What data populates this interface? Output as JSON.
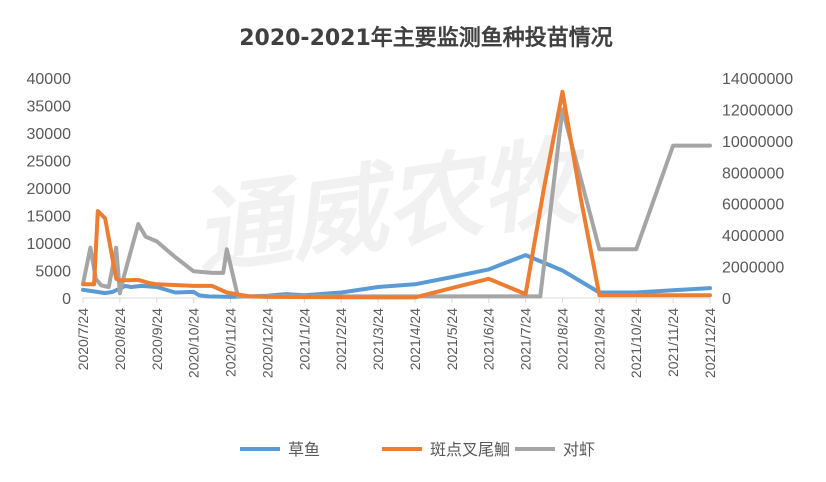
{
  "chart_data": {
    "type": "line",
    "title": "2020-2021年主要监测鱼种投苗情况",
    "watermark": "通威农牧",
    "x_tick_labels": [
      "2020/7/24",
      "2020/8/24",
      "2020/9/24",
      "2020/10/24",
      "2020/11/24",
      "2020/12/24",
      "2021/1/24",
      "2021/2/24",
      "2021/3/24",
      "2021/4/24",
      "2021/5/24",
      "2021/6/24",
      "2021/7/24",
      "2021/8/24",
      "2021/9/24",
      "2021/10/24",
      "2021/11/24",
      "2021/12/24"
    ],
    "y_left": {
      "lim": [
        0,
        40000
      ],
      "ticks": [
        0,
        5000,
        10000,
        15000,
        20000,
        25000,
        30000,
        35000,
        40000
      ]
    },
    "y_right": {
      "lim": [
        0,
        14000000
      ],
      "ticks": [
        0,
        2000000,
        4000000,
        6000000,
        8000000,
        10000000,
        12000000,
        14000000
      ]
    },
    "series": [
      {
        "name": "草鱼",
        "axis": "left",
        "color": "#5b9bd5",
        "x": [
          0,
          0.2,
          0.6,
          0.8,
          1.15,
          1.3,
          1.6,
          2.0,
          2.5,
          3.0,
          3.15,
          3.4,
          4.0,
          4.5,
          5.0,
          5.5,
          6.0,
          7.0,
          8.0,
          9.0,
          10.0,
          11.0,
          11.5,
          12.0,
          13.0,
          14.0,
          15.0,
          16.0,
          17.0
        ],
        "y": [
          1500,
          1300,
          900,
          1100,
          2200,
          2000,
          2200,
          2000,
          1000,
          1100,
          500,
          300,
          200,
          300,
          400,
          700,
          500,
          1000,
          2000,
          2500,
          3800,
          5200,
          6500,
          7800,
          5000,
          1000,
          1000,
          1400,
          1800
        ]
      },
      {
        "name": "斑点叉尾鮰",
        "axis": "left",
        "color": "#ed7d31",
        "x": [
          0,
          0.3,
          0.4,
          0.6,
          0.9,
          1.0,
          1.5,
          1.8,
          2.0,
          3.0,
          3.2,
          3.5,
          3.9,
          4.5,
          5.0,
          8.0,
          9.0,
          10.0,
          11.0,
          12.0,
          12.5,
          13.0,
          13.5,
          14.0,
          15.0,
          17.0
        ],
        "y": [
          2500,
          2500,
          15800,
          14500,
          3500,
          3200,
          3300,
          2700,
          2500,
          2200,
          2200,
          2200,
          1000,
          300,
          200,
          100,
          100,
          1800,
          3500,
          700,
          20000,
          37500,
          18000,
          500,
          500,
          500
        ]
      },
      {
        "name": "对虾",
        "axis": "right",
        "color": "#a5a5a5",
        "x": [
          0,
          0.2,
          0.35,
          0.5,
          0.7,
          0.9,
          1.0,
          1.1,
          1.3,
          1.5,
          1.7,
          2.0,
          2.5,
          3.0,
          3.5,
          3.8,
          3.9,
          4.2,
          5.0,
          6.0,
          7.0,
          8.0,
          9.0,
          10.0,
          11.0,
          12.0,
          12.4,
          13.0,
          14.0,
          14.3,
          15.0,
          16.0,
          17.0
        ],
        "y": [
          900000,
          3200000,
          1200000,
          800000,
          700000,
          3200000,
          300000,
          1300000,
          3000000,
          4700000,
          3900000,
          3600000,
          2600000,
          1700000,
          1600000,
          1600000,
          3100000,
          100000,
          100000,
          100000,
          100000,
          100000,
          100000,
          100000,
          100000,
          100000,
          100000,
          12000000,
          3100000,
          3100000,
          3100000,
          9700000,
          9700000
        ]
      }
    ],
    "legend_position": "bottom",
    "grid": false
  }
}
